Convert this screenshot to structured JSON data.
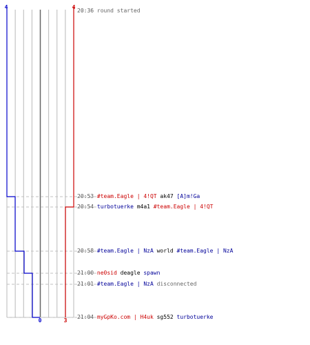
{
  "colors": {
    "blue_team": "#0000cc",
    "red_team": "#cc0000",
    "grid": "#b8b8b8",
    "center": "#666666",
    "dashed": "#c0c0c0"
  },
  "chart_data": {
    "type": "line",
    "labels": {
      "blue_top": "4",
      "red_top": "4",
      "blue_bottom": "0",
      "red_bottom": "3"
    },
    "times": [
      "20:36",
      "20:53",
      "20:54",
      "20:58",
      "21:00",
      "21:01",
      "21:04"
    ],
    "series": [
      {
        "team": "blue",
        "alive": [
          4,
          3,
          3,
          2,
          1,
          1,
          0
        ]
      },
      {
        "team": "red",
        "alive": [
          4,
          4,
          3,
          3,
          3,
          3,
          3
        ]
      }
    ],
    "ylim": [
      0,
      4
    ]
  },
  "log": [
    {
      "time": "20:36",
      "parts": [
        {
          "text": "round started",
          "color": "gray"
        }
      ]
    },
    {
      "time": "20:53",
      "parts": [
        {
          "text": "#team.Eagle | 4!QT",
          "color": "red"
        },
        {
          "text": " ak47 ",
          "color": "black"
        },
        {
          "text": "[A]m!Ga",
          "color": "blue"
        }
      ]
    },
    {
      "time": "20:54",
      "parts": [
        {
          "text": "turbotuerke",
          "color": "blue"
        },
        {
          "text": " m4a1 ",
          "color": "black"
        },
        {
          "text": "#team.Eagle | 4!QT",
          "color": "red"
        }
      ]
    },
    {
      "time": "20:58",
      "parts": [
        {
          "text": "#team.Eagle | NzA",
          "color": "blue"
        },
        {
          "text": " world ",
          "color": "black"
        },
        {
          "text": "#team.Eagle | NzA",
          "color": "blue"
        }
      ]
    },
    {
      "time": "21:00",
      "parts": [
        {
          "text": "ne0sid",
          "color": "red"
        },
        {
          "text": " deagle ",
          "color": "black"
        },
        {
          "text": "spawn",
          "color": "blue"
        }
      ]
    },
    {
      "time": "21:01",
      "parts": [
        {
          "text": "#team.Eagle | NzA",
          "color": "blue"
        },
        {
          "text": " disconnected",
          "color": "gray"
        }
      ]
    },
    {
      "time": "21:04",
      "parts": [
        {
          "text": "myGpKo.com | H4uk",
          "color": "red"
        },
        {
          "text": " sg552 ",
          "color": "black"
        },
        {
          "text": "turbotuerke",
          "color": "blue"
        }
      ]
    }
  ]
}
